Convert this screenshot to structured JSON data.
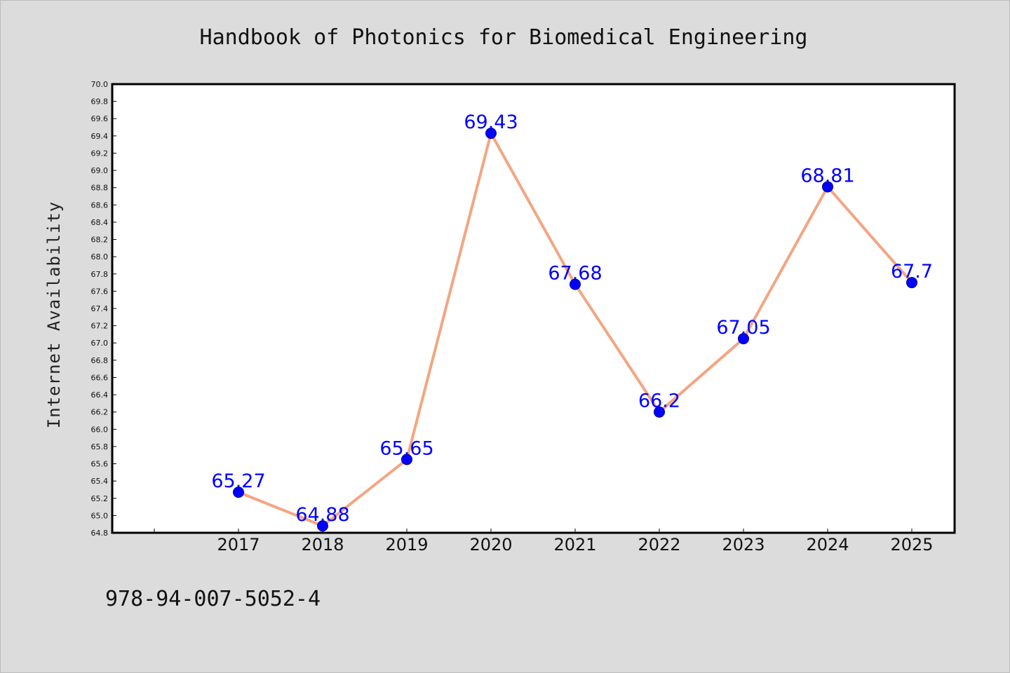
{
  "chart_data": {
    "type": "line",
    "title": "Handbook of Photonics for Biomedical Engineering",
    "xlabel": "",
    "ylabel": "Internet Availability",
    "categories": [
      "2017",
      "2018",
      "2019",
      "2020",
      "2021",
      "2022",
      "2023",
      "2024",
      "2025"
    ],
    "series": [
      {
        "values": [
          65.27,
          64.88,
          65.65,
          69.43,
          67.68,
          66.2,
          67.05,
          68.81,
          67.7
        ],
        "data_labels": [
          "65.27",
          "64.88",
          "65.65",
          "69.43",
          "67.68",
          "66.2",
          "67.05",
          "68.81",
          "67.7"
        ]
      }
    ],
    "ylim": [
      64.8,
      70.0
    ],
    "yticks": [
      "64.8",
      "65.0",
      "65.2",
      "65.4",
      "65.6",
      "65.8",
      "66.0",
      "66.2",
      "66.4",
      "66.6",
      "66.8",
      "67.0",
      "67.2",
      "67.4",
      "67.6",
      "67.8",
      "68.0",
      "68.2",
      "68.4",
      "68.6",
      "68.8",
      "69.0",
      "69.2",
      "69.4",
      "69.6",
      "69.8",
      "70.0"
    ],
    "grid": false,
    "legend": "none",
    "colors": {
      "line": "#f4a582",
      "marker": "#0000ff",
      "marker_edge": "#00008b",
      "data_label": "#0000ff",
      "background": "#dcdcdc",
      "plot_background": "#ffffff"
    }
  },
  "footer": {
    "text": "978-94-007-5052-4"
  }
}
